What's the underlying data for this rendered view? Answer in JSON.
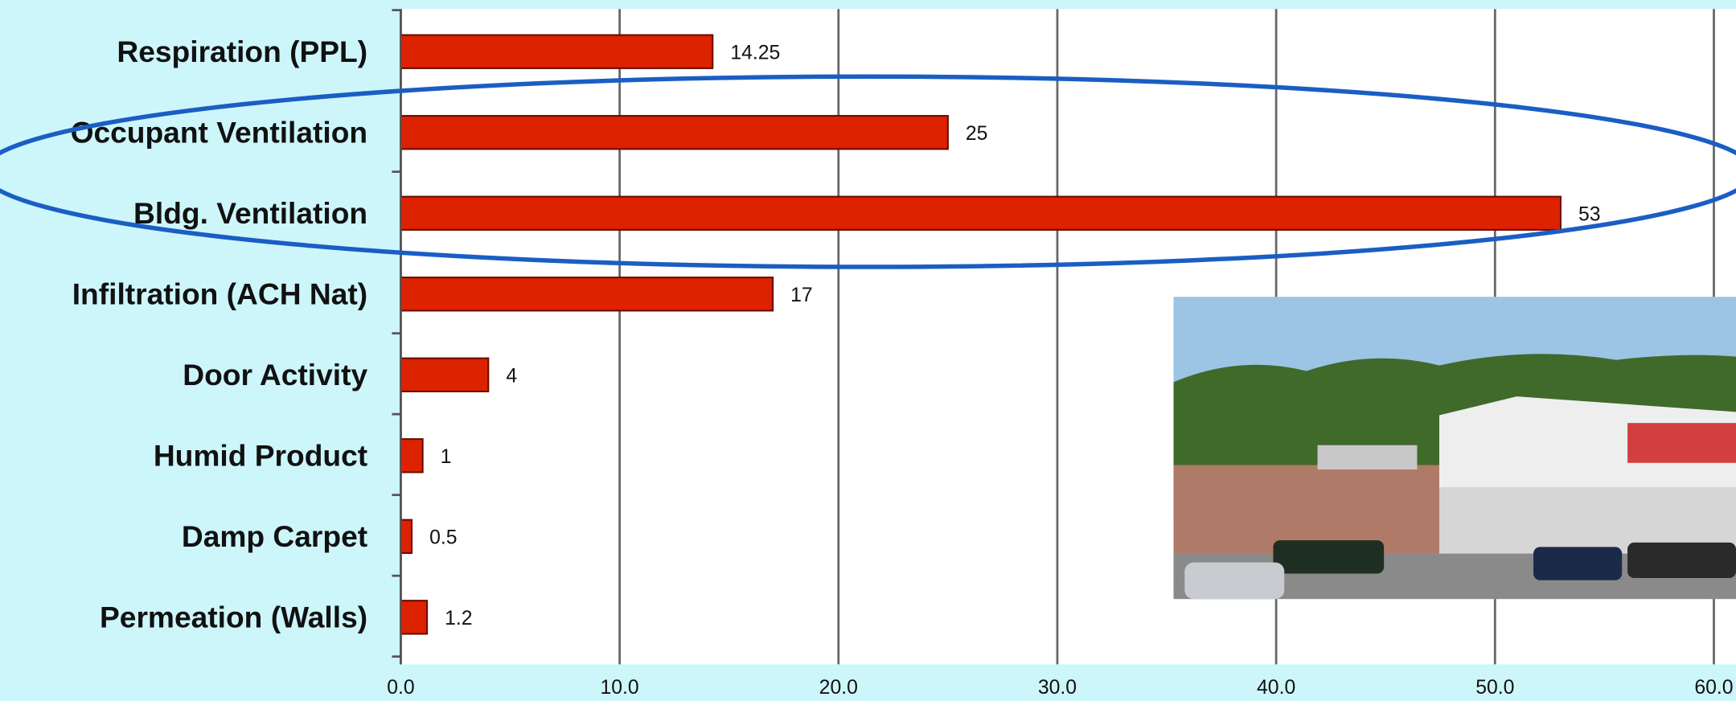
{
  "chart_data": {
    "type": "bar",
    "orientation": "horizontal",
    "categories": [
      "Respiration (PPL)",
      "Occupant Ventilation",
      "Bldg. Ventilation",
      "Infiltration (ACH Nat)",
      "Door Activity",
      "Humid Product",
      "Damp Carpet",
      "Permeation (Walls)"
    ],
    "values": [
      14.25,
      25,
      53,
      17,
      4,
      1,
      0.5,
      1.2
    ],
    "color": "#dd2200",
    "xlim": [
      0,
      60
    ],
    "xticks": [
      {
        "value": 0,
        "label": "0.0"
      },
      {
        "value": 10,
        "label": "10.0"
      },
      {
        "value": 20,
        "label": "20.0"
      },
      {
        "value": 30,
        "label": "30.0"
      },
      {
        "value": 40,
        "label": "40.0"
      },
      {
        "value": 50,
        "label": "50.0"
      },
      {
        "value": 60,
        "label": "60.0"
      }
    ],
    "grid": true
  }
}
